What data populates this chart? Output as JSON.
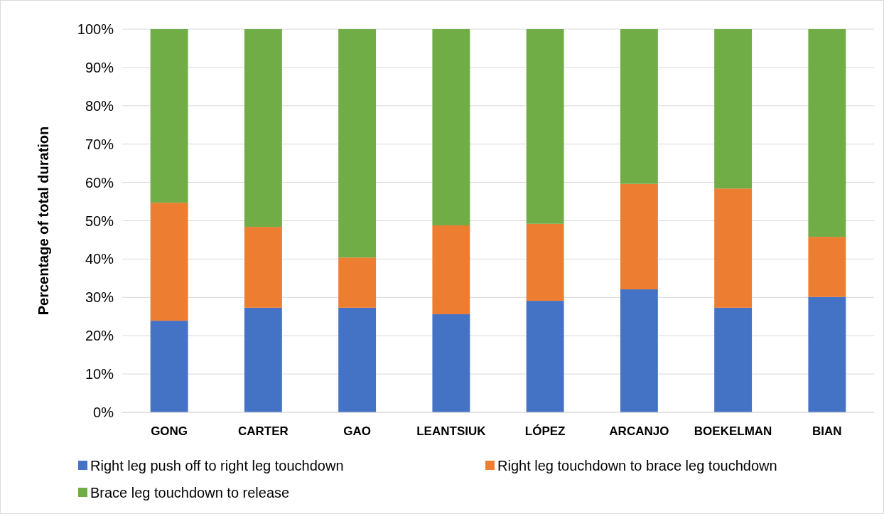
{
  "chart_data": {
    "type": "bar",
    "stacked": true,
    "ylabel": "Percentage of total duration",
    "categories": [
      "GONG",
      "CARTER",
      "GAO",
      "LEANTSIUK",
      "LÓPEZ",
      "ARCANJO",
      "BOEKELMAN",
      "BIAN"
    ],
    "series": [
      {
        "name": "Right leg push off to right leg touchdown",
        "color": "#4472c4",
        "values": [
          23.9,
          27.3,
          27.3,
          25.6,
          29.1,
          32.1,
          27.3,
          30.1
        ]
      },
      {
        "name": "Right leg touchdown to brace leg touchdown",
        "color": "#ed7d31",
        "values": [
          30.8,
          21.1,
          13.1,
          23.2,
          20.1,
          27.5,
          31.1,
          15.7
        ]
      },
      {
        "name": "Brace leg touchdown to release",
        "color": "#70ad47",
        "values": [
          45.3,
          51.6,
          59.6,
          51.2,
          50.8,
          40.4,
          41.6,
          54.2
        ]
      }
    ],
    "ylim": [
      0,
      100
    ],
    "yticks": [
      {
        "value": 0,
        "label": "0%"
      },
      {
        "value": 10,
        "label": "10%"
      },
      {
        "value": 20,
        "label": "20%"
      },
      {
        "value": 30,
        "label": "30%"
      },
      {
        "value": 40,
        "label": "40%"
      },
      {
        "value": 50,
        "label": "50%"
      },
      {
        "value": 60,
        "label": "60%"
      },
      {
        "value": 70,
        "label": "70%"
      },
      {
        "value": 80,
        "label": "80%"
      },
      {
        "value": 90,
        "label": "90%"
      },
      {
        "value": 100,
        "label": "100%"
      }
    ],
    "grid": "y",
    "legend": "bottom"
  }
}
